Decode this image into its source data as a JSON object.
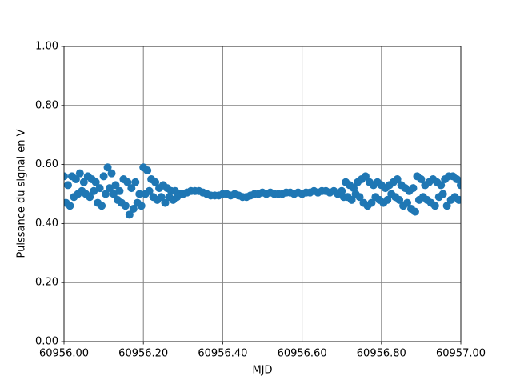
{
  "chart_data": {
    "type": "scatter",
    "xlabel": "MJD",
    "ylabel": "Puissance du signal en V",
    "color": "#1f77b4",
    "grid": true,
    "xlim": [
      60956.0,
      60957.0
    ],
    "xticks": [
      {
        "value": 60956.0,
        "label": "60956.00"
      },
      {
        "value": 60956.2,
        "label": "60956.20"
      },
      {
        "value": 60956.4,
        "label": "60956.40"
      },
      {
        "value": 60956.6,
        "label": "60956.60"
      },
      {
        "value": 60956.8,
        "label": "60956.80"
      },
      {
        "value": 60957.0,
        "label": "60957.00"
      }
    ],
    "ylim": [
      0,
      1
    ],
    "yticks": [
      {
        "value": 0,
        "label": "0.00"
      },
      {
        "value": 0.2,
        "label": "0.20"
      },
      {
        "value": 0.4,
        "label": "0.40"
      },
      {
        "value": 0.6,
        "label": "0.60"
      },
      {
        "value": 0.8,
        "label": "0.80"
      },
      {
        "value": 1,
        "label": "1.00"
      }
    ],
    "x": [
      60956.0,
      60956.005,
      60956.01,
      60956.015,
      60956.02,
      60956.025,
      60956.03,
      60956.035,
      60956.04,
      60956.045,
      60956.05,
      60956.055,
      60956.06,
      60956.065,
      60956.07,
      60956.075,
      60956.08,
      60956.085,
      60956.09,
      60956.095,
      60956.1,
      60956.105,
      60956.11,
      60956.115,
      60956.12,
      60956.125,
      60956.13,
      60956.135,
      60956.14,
      60956.145,
      60956.15,
      60956.155,
      60956.16,
      60956.165,
      60956.17,
      60956.175,
      60956.18,
      60956.185,
      60956.19,
      60956.195,
      60956.2,
      60956.205,
      60956.21,
      60956.215,
      60956.22,
      60956.225,
      60956.23,
      60956.235,
      60956.24,
      60956.245,
      60956.25,
      60956.255,
      60956.26,
      60956.265,
      60956.27,
      60956.275,
      60956.28,
      60956.285,
      60956.29,
      60956.295,
      60956.3,
      60956.31,
      60956.32,
      60956.33,
      60956.34,
      60956.35,
      60956.36,
      60956.37,
      60956.38,
      60956.39,
      60956.4,
      60956.41,
      60956.42,
      60956.43,
      60956.44,
      60956.45,
      60956.46,
      60956.47,
      60956.48,
      60956.49,
      60956.5,
      60956.51,
      60956.52,
      60956.53,
      60956.54,
      60956.55,
      60956.56,
      60956.57,
      60956.58,
      60956.59,
      60956.6,
      60956.61,
      60956.62,
      60956.63,
      60956.64,
      60956.65,
      60956.66,
      60956.67,
      60956.68,
      60956.69,
      60956.7,
      60956.705,
      60956.71,
      60956.715,
      60956.72,
      60956.725,
      60956.73,
      60956.735,
      60956.74,
      60956.745,
      60956.75,
      60956.755,
      60956.76,
      60956.765,
      60956.77,
      60956.775,
      60956.78,
      60956.785,
      60956.79,
      60956.795,
      60956.8,
      60956.805,
      60956.81,
      60956.815,
      60956.82,
      60956.825,
      60956.83,
      60956.835,
      60956.84,
      60956.845,
      60956.85,
      60956.855,
      60956.86,
      60956.865,
      60956.87,
      60956.875,
      60956.88,
      60956.885,
      60956.89,
      60956.895,
      60956.9,
      60956.905,
      60956.91,
      60956.915,
      60956.92,
      60956.925,
      60956.93,
      60956.935,
      60956.94,
      60956.945,
      60956.95,
      60956.955,
      60956.96,
      60956.965,
      60956.97,
      60956.975,
      60956.98,
      60956.985,
      60956.99,
      60956.995,
      60957.0
    ],
    "values": [
      0.56,
      0.47,
      0.53,
      0.46,
      0.56,
      0.49,
      0.55,
      0.5,
      0.57,
      0.51,
      0.54,
      0.5,
      0.56,
      0.49,
      0.55,
      0.51,
      0.54,
      0.47,
      0.52,
      0.46,
      0.56,
      0.5,
      0.59,
      0.52,
      0.57,
      0.5,
      0.53,
      0.48,
      0.51,
      0.47,
      0.55,
      0.46,
      0.54,
      0.43,
      0.52,
      0.45,
      0.54,
      0.47,
      0.5,
      0.46,
      0.59,
      0.5,
      0.58,
      0.51,
      0.55,
      0.49,
      0.54,
      0.48,
      0.52,
      0.49,
      0.53,
      0.47,
      0.52,
      0.49,
      0.51,
      0.48,
      0.51,
      0.49,
      0.5,
      0.5,
      0.5,
      0.505,
      0.51,
      0.51,
      0.51,
      0.505,
      0.5,
      0.495,
      0.495,
      0.495,
      0.5,
      0.5,
      0.495,
      0.5,
      0.495,
      0.49,
      0.49,
      0.495,
      0.5,
      0.5,
      0.505,
      0.5,
      0.505,
      0.5,
      0.5,
      0.5,
      0.505,
      0.505,
      0.5,
      0.505,
      0.5,
      0.505,
      0.505,
      0.51,
      0.505,
      0.51,
      0.51,
      0.505,
      0.51,
      0.5,
      0.51,
      0.49,
      0.54,
      0.49,
      0.53,
      0.48,
      0.52,
      0.5,
      0.54,
      0.49,
      0.55,
      0.47,
      0.56,
      0.46,
      0.54,
      0.47,
      0.53,
      0.49,
      0.54,
      0.48,
      0.53,
      0.47,
      0.52,
      0.48,
      0.53,
      0.5,
      0.54,
      0.49,
      0.55,
      0.48,
      0.53,
      0.46,
      0.52,
      0.47,
      0.51,
      0.45,
      0.52,
      0.44,
      0.56,
      0.48,
      0.55,
      0.49,
      0.53,
      0.48,
      0.54,
      0.47,
      0.55,
      0.46,
      0.54,
      0.49,
      0.53,
      0.5,
      0.55,
      0.46,
      0.56,
      0.48,
      0.56,
      0.49,
      0.55,
      0.48,
      0.53
    ]
  }
}
